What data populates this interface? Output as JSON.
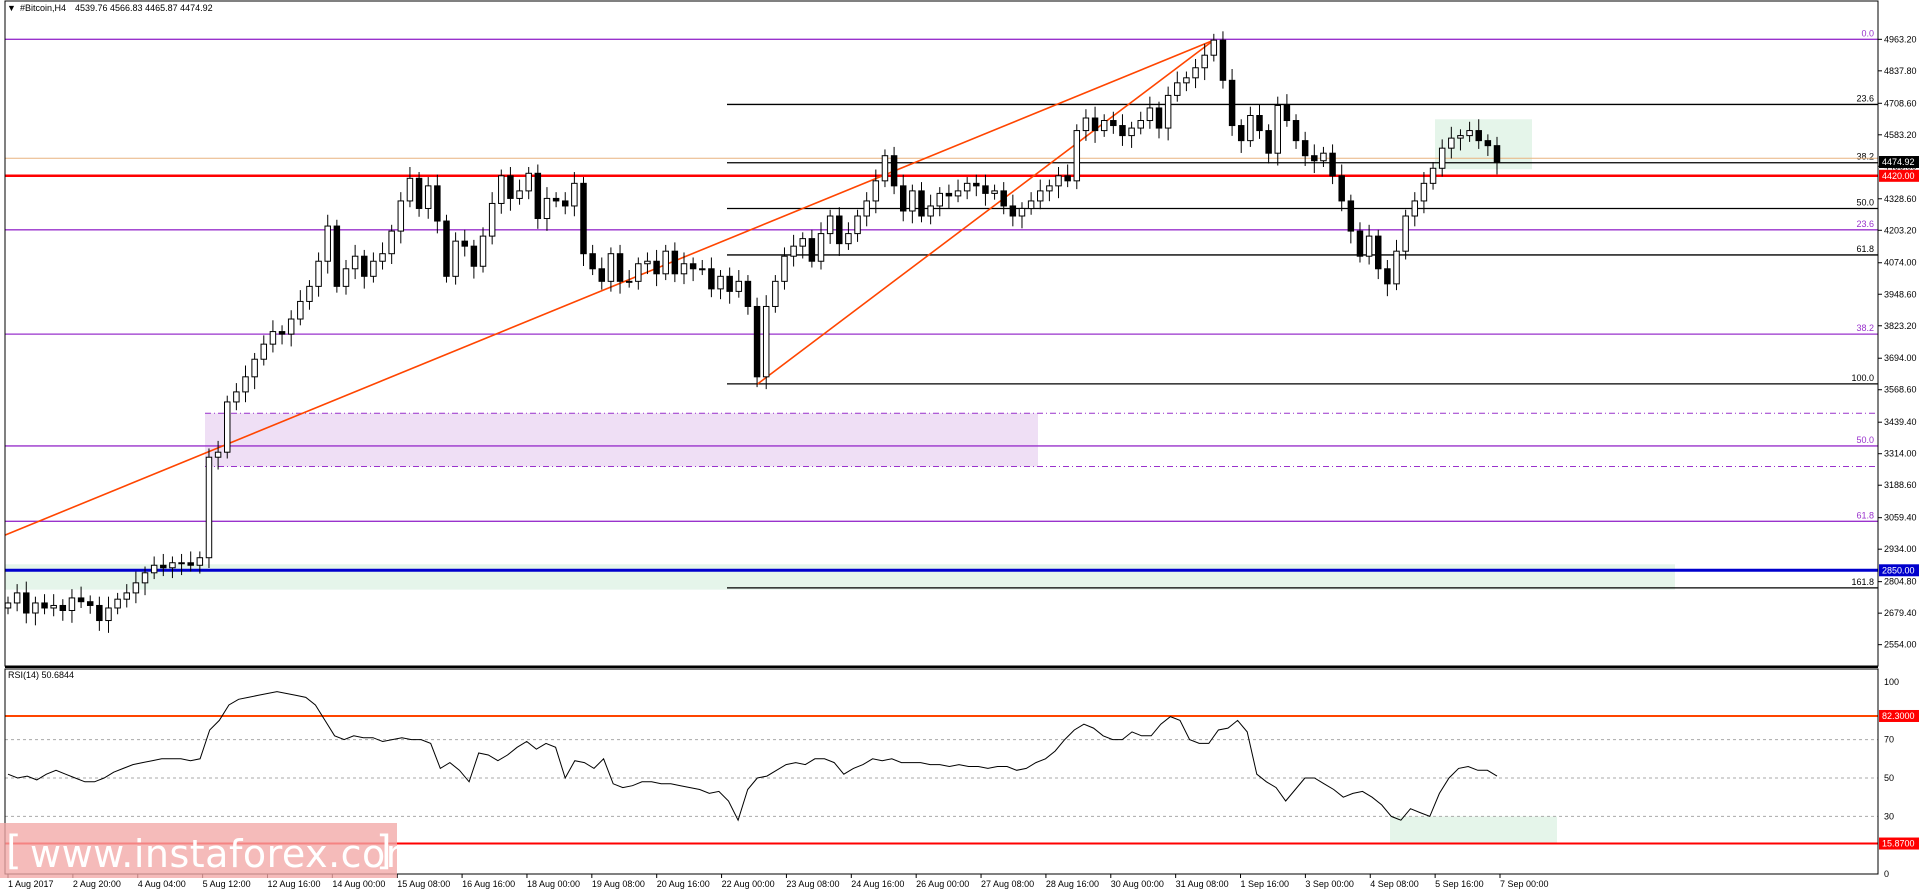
{
  "header": {
    "symbol": "#Bitcoin,H4",
    "ohlc": "4539.76 4566.83 4465.87 4474.92"
  },
  "rsi_header": "RSI(14) 50.6844",
  "watermark": "www.instaforex.com",
  "colors": {
    "candle": "#000000",
    "purple_level": "#9932cc",
    "red_level": "#ff0000",
    "blue_level": "#0000cd",
    "trendline": "#ff4500",
    "zone_purple": "#efdff5",
    "zone_green": "#e5f5ea",
    "tan_level": "#e8b480",
    "watermark_bg": "#f2a8a6"
  },
  "chart_data": [
    {
      "type": "candlestick",
      "title": "#Bitcoin,H4",
      "ohlc_last": {
        "open": 4539.76,
        "high": 4566.83,
        "low": 4465.87,
        "close": 4474.92
      },
      "ylim": [
        2485,
        5060
      ],
      "y_ticks": [
        "4963.20",
        "4837.80",
        "4708.60",
        "4583.20",
        "4458.00",
        "4328.60",
        "4203.20",
        "4074.00",
        "3948.60",
        "3823.20",
        "3694.00",
        "3568.60",
        "3439.40",
        "3314.00",
        "3188.60",
        "3059.40",
        "2934.00",
        "2804.80",
        "2679.40",
        "2554.00"
      ],
      "x_ticks": [
        "1 Aug 2017",
        "2 Aug 20:00",
        "4 Aug 04:00",
        "5 Aug 12:00",
        "12 Aug 16:00",
        "14 Aug 00:00",
        "15 Aug 08:00",
        "16 Aug 16:00",
        "18 Aug 00:00",
        "19 Aug 08:00",
        "20 Aug 16:00",
        "22 Aug 00:00",
        "23 Aug 08:00",
        "24 Aug 16:00",
        "26 Aug 00:00",
        "27 Aug 08:00",
        "28 Aug 16:00",
        "30 Aug 00:00",
        "31 Aug 08:00",
        "1 Sep 16:00",
        "3 Sep 00:00",
        "4 Sep 08:00",
        "5 Sep 16:00",
        "7 Sep 00:00"
      ],
      "price_badges": {
        "current": "4474.92",
        "support": "4420.00",
        "blue": "2850.00"
      },
      "fib_large": {
        "0.0": 4963.2,
        "23.6": 4205,
        "38.2": 3790,
        "50.0": 3345,
        "61.8": 3045
      },
      "fib_small": {
        "23.6": 4704,
        "38.2": 4472,
        "50.0": 4290,
        "61.8": 4105,
        "100.0": 3592,
        "161.8": 2780
      },
      "levels": {
        "red_support": 4420.0,
        "blue_support": 2850.0,
        "tan_current": 4490.0
      },
      "zones": [
        {
          "name": "purple-zone",
          "from": 3263,
          "to": 3475
        },
        {
          "name": "green-zone-bottom",
          "from": 2773,
          "to": 2874
        },
        {
          "name": "green-zone-top",
          "from": 4446,
          "to": 4645
        }
      ],
      "closes": [
        2720,
        2760,
        2680,
        2720,
        2700,
        2710,
        2690,
        2740,
        2725,
        2710,
        2650,
        2700,
        2735,
        2760,
        2800,
        2840,
        2870,
        2860,
        2880,
        2880,
        2870,
        2900,
        3300,
        3320,
        3520,
        3560,
        3620,
        3690,
        3750,
        3800,
        3790,
        3850,
        3920,
        3980,
        4080,
        4220,
        3980,
        4050,
        4100,
        4020,
        4080,
        4110,
        4200,
        4320,
        4410,
        4290,
        4380,
        4240,
        4020,
        4160,
        4140,
        4060,
        4180,
        4310,
        4420,
        4330,
        4360,
        4430,
        4250,
        4330,
        4320,
        4300,
        4390,
        4110,
        4050,
        4000,
        4110,
        4000,
        4000,
        4070,
        4080,
        4030,
        4120,
        4030,
        4070,
        4050,
        4050,
        3970,
        4020,
        3960,
        4000,
        3900,
        3620,
        3900,
        4000,
        4100,
        4140,
        4170,
        4080,
        4190,
        4260,
        4150,
        4190,
        4260,
        4320,
        4400,
        4500,
        4380,
        4280,
        4360,
        4260,
        4300,
        4350,
        4340,
        4360,
        4390,
        4380,
        4350,
        4360,
        4300,
        4260,
        4290,
        4320,
        4360,
        4380,
        4420,
        4400,
        4600,
        4650,
        4600,
        4640,
        4620,
        4580,
        4610,
        4640,
        4690,
        4610,
        4740,
        4790,
        4810,
        4850,
        4900,
        4960,
        4800,
        4620,
        4560,
        4660,
        4600,
        4510,
        4700,
        4640,
        4560,
        4500,
        4480,
        4510,
        4420,
        4320,
        4200,
        4100,
        4180,
        4050,
        3990,
        4120,
        4260,
        4320,
        4390,
        4450,
        4530,
        4570,
        4580,
        4600,
        4560,
        4540,
        4474.92
      ]
    },
    {
      "type": "line",
      "title": "RSI(14) 50.6844",
      "ylim": [
        0,
        100
      ],
      "y_ticks": [
        "100",
        "70",
        "50",
        "30",
        "0"
      ],
      "levels": {
        "upper": "82.3000",
        "lower": "15.8700"
      },
      "zone": {
        "from_rsi": 30,
        "to_rsi": 16
      },
      "values": [
        52,
        50,
        51,
        49,
        52,
        54,
        52,
        50,
        48,
        48,
        50,
        53,
        55,
        57,
        58,
        59,
        60,
        60,
        60,
        59,
        60,
        75,
        80,
        88,
        91,
        92,
        93,
        94,
        95,
        94,
        93,
        92,
        88,
        80,
        72,
        70,
        72,
        71,
        71,
        69,
        70,
        71,
        70,
        70,
        68,
        55,
        58,
        54,
        48,
        63,
        62,
        59,
        62,
        66,
        69,
        65,
        68,
        66,
        50,
        59,
        58,
        55,
        60,
        47,
        45,
        46,
        48,
        48,
        47,
        47,
        46,
        45,
        44,
        42,
        43,
        38,
        28,
        44,
        50,
        51,
        54,
        57,
        58,
        57,
        60,
        60,
        58,
        52,
        55,
        57,
        60,
        59,
        60,
        58,
        58,
        58,
        57,
        57,
        56,
        57,
        56,
        56,
        55,
        56,
        56,
        54,
        55,
        58,
        60,
        64,
        70,
        75,
        78,
        76,
        72,
        70,
        70,
        74,
        72,
        72,
        78,
        82,
        80,
        70,
        68,
        68,
        75,
        76,
        80,
        74,
        52,
        48,
        45,
        38,
        44,
        50,
        50,
        47,
        44,
        40,
        42,
        43,
        40,
        36,
        30,
        28,
        34,
        32,
        30,
        42,
        50,
        55,
        56,
        54,
        54,
        51
      ]
    }
  ]
}
